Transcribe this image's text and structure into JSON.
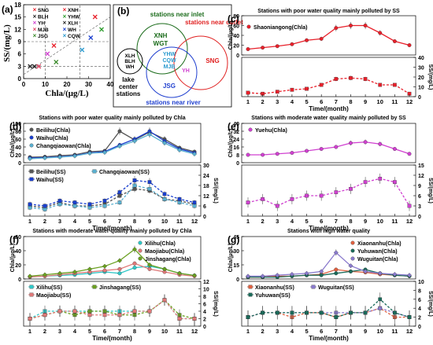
{
  "panel_letters": [
    "(a)",
    "(b)",
    "(c)",
    "(d)",
    "(e)",
    "(f)",
    "(g)"
  ],
  "panel_b": {
    "groups": [
      {
        "title": "stations near inlet",
        "color": "#1a6b1a",
        "members": [
          "XNH",
          "WGT"
        ]
      },
      {
        "title": "stations near outlet",
        "color": "#e02020",
        "members": [
          "SNG"
        ]
      },
      {
        "title": "stations near river",
        "color": "#1f3fcf",
        "members": [
          "JSG"
        ]
      }
    ],
    "overlap_members": [
      "YHW",
      "CQW",
      "MJB"
    ],
    "overlap_extra": "YH",
    "lake_center": {
      "members": [
        "XLH",
        "BLH",
        "WH"
      ],
      "label_lines": [
        "lake",
        "center",
        "stations"
      ]
    }
  },
  "chart_data": [
    {
      "panel": "(a)",
      "type": "scatter",
      "xlabel": "Chla/(μg/L)",
      "ylabel": "SS/(mg/L)",
      "xlim": [
        0,
        40
      ],
      "ylim": [
        0,
        18
      ],
      "xticks": [
        0,
        10,
        20,
        30,
        40
      ],
      "yticks": [
        0,
        3,
        6,
        9,
        12,
        15,
        18
      ],
      "series": [
        {
          "name": "SNG",
          "color": "#e8202a",
          "marker": "x",
          "x": 33,
          "y": 15
        },
        {
          "name": "XNH",
          "color": "#e8202a",
          "marker": "x",
          "x": 14,
          "y": 8
        },
        {
          "name": "BLH",
          "color": "#222222",
          "marker": "x",
          "x": 3,
          "y": 3
        },
        {
          "name": "YHW",
          "color": "#2a9a2a",
          "marker": "x",
          "x": 36,
          "y": 12
        },
        {
          "name": "YH",
          "color": "#d040d0",
          "marker": "x",
          "x": 11,
          "y": 6
        },
        {
          "name": "XLH",
          "color": "#222222",
          "marker": "x",
          "x": 5,
          "y": 3
        },
        {
          "name": "MJB",
          "color": "#e04060",
          "marker": "x",
          "x": 7,
          "y": 3
        },
        {
          "name": "WH",
          "color": "#1a3fcf",
          "marker": "x",
          "x": 31,
          "y": 10
        },
        {
          "name": "JSG",
          "color": "#3a8a2a",
          "marker": "x",
          "x": 15,
          "y": 4
        },
        {
          "name": "CQW",
          "color": "#2a9acf",
          "marker": "x",
          "x": 27,
          "y": 7
        }
      ]
    },
    {
      "panel": "(c)",
      "type": "line",
      "title": "Stations with poor water quality mainly polluted by SS",
      "xlabel": "Time/(month)",
      "ylabel_top": "Chla/(μg/L)",
      "ylabel_bottom": "SS/(mg/L)",
      "x": [
        1,
        2,
        3,
        4,
        5,
        6,
        7,
        8,
        9,
        10,
        11,
        12
      ],
      "top": {
        "ylim": [
          0,
          80
        ],
        "yticks": [
          0,
          20,
          40,
          60,
          80
        ],
        "series": [
          {
            "name": "Shaoniangong(Chla)",
            "color": "#e8202a",
            "values": [
              12,
              15,
              18,
              22,
              30,
              33,
              55,
              60,
              60,
              45,
              28,
              20
            ]
          }
        ]
      },
      "bottom": {
        "ylim": [
          0,
          40
        ],
        "yticks": [
          0,
          10,
          20,
          30,
          40
        ],
        "series": [
          {
            "name": "Shaoniangong(SS)",
            "color": "#e8202a",
            "values": [
              4,
              3,
              5,
              7,
              8,
              12,
              18,
              19,
              18,
              12,
              12,
              3
            ]
          }
        ]
      }
    },
    {
      "panel": "(d)",
      "type": "line",
      "title": "Stations with poor water quality mainly polluted by Chla",
      "xlabel": "Time/(month)",
      "ylabel_top": "Chla/(μg/L)",
      "ylabel_bottom": "SS/(mg/L)",
      "x": [
        1,
        2,
        3,
        4,
        5,
        6,
        7,
        8,
        9,
        10,
        11,
        12
      ],
      "top": {
        "ylim": [
          0,
          100
        ],
        "yticks": [
          0,
          20,
          40,
          60,
          80,
          100
        ],
        "series": [
          {
            "name": "Beilihu(Chla)",
            "color": "#555555",
            "values": [
              14,
              15,
              18,
              20,
              28,
              30,
              80,
              58,
              78,
              60,
              38,
              28
            ]
          },
          {
            "name": "Waihu(Chla)",
            "color": "#1a3fcf",
            "values": [
              12,
              13,
              15,
              18,
              25,
              28,
              45,
              60,
              80,
              55,
              35,
              25
            ]
          },
          {
            "name": "Changqiaowan(Chla)",
            "color": "#5ab0d0",
            "values": [
              10,
              12,
              14,
              17,
              24,
              26,
              42,
              55,
              72,
              50,
              32,
              22
            ]
          }
        ]
      },
      "bottom": {
        "ylim": [
          0,
          30
        ],
        "yticks": [
          0,
          6,
          12,
          18,
          24,
          30
        ],
        "series": [
          {
            "name": "Beilihu(SS)",
            "color": "#555555",
            "values": [
              6,
              5,
              8,
              6,
              6,
              7,
              12,
              16,
              15,
              10,
              9,
              7
            ]
          },
          {
            "name": "Changqiaowan(SS)",
            "color": "#5ab0d0",
            "values": [
              5,
              4,
              7,
              6,
              5,
              6,
              8,
              18,
              16,
              10,
              8,
              6
            ]
          },
          {
            "name": "Waihu(SS)",
            "color": "#1a3fcf",
            "values": [
              7,
              6,
              9,
              8,
              7,
              9,
              14,
              21,
              20,
              13,
              10,
              8
            ]
          }
        ]
      }
    },
    {
      "panel": "(e)",
      "type": "line",
      "title": "Stations with moderate water quality mainly polluted by SS",
      "xlabel": "Time/(month)",
      "ylabel_top": "Chla/(μg/L)",
      "ylabel_bottom": "SS/(mg/L)",
      "x": [
        1,
        2,
        3,
        4,
        5,
        6,
        7,
        8,
        9,
        10,
        11,
        12
      ],
      "top": {
        "ylim": [
          0,
          40
        ],
        "yticks": [
          0,
          8,
          16,
          24,
          32,
          40
        ],
        "series": [
          {
            "name": "Yuehu(Chla)",
            "color": "#d040d0",
            "values": [
              8,
              8,
              9,
              10,
              12,
              14,
              16,
              20,
              21,
              19,
              14,
              9
            ]
          }
        ]
      },
      "bottom": {
        "ylim": [
          0,
          15
        ],
        "yticks": [
          0,
          3,
          6,
          9,
          12,
          15
        ],
        "series": [
          {
            "name": "Yuehu(SS)",
            "color": "#d040d0",
            "values": [
              4,
              5,
              3,
              5,
              6,
              6,
              7,
              8,
              10,
              11,
              10,
              3
            ]
          }
        ]
      }
    },
    {
      "panel": "(f)",
      "type": "line",
      "title": "Stations with moderate water quality mainly polluted by Chla",
      "xlabel": "Time/(month)",
      "ylabel_top": "Chla/(μg/L)",
      "ylabel_bottom": "SS/(mg/L)",
      "x": [
        1,
        2,
        3,
        4,
        5,
        6,
        7,
        8,
        9,
        10,
        11,
        12
      ],
      "top": {
        "ylim": [
          0,
          60
        ],
        "yticks": [
          0,
          20,
          40,
          60
        ],
        "series": [
          {
            "name": "Xilihu(Chla)",
            "color": "#2ec8c8",
            "values": [
              3,
              4,
              5,
              6,
              8,
              10,
              8,
              16,
              18,
              14,
              8,
              5
            ]
          },
          {
            "name": "Maojiabu(Chla)",
            "color": "#e07878",
            "values": [
              3,
              4,
              6,
              8,
              10,
              12,
              14,
              22,
              14,
              10,
              6,
              4
            ]
          },
          {
            "name": "Jinshagang(Chla)",
            "color": "#6aa020",
            "values": [
              4,
              6,
              8,
              10,
              14,
              18,
              26,
              42,
              20,
              14,
              8,
              5
            ]
          }
        ]
      },
      "bottom": {
        "ylim": [
          0,
          12
        ],
        "yticks": [
          0,
          2,
          4,
          6,
          8,
          10,
          12
        ],
        "series": [
          {
            "name": "Xilihu(SS)",
            "color": "#2ec8c8",
            "values": [
              2,
              4,
              4,
              4,
              4,
              4,
              4,
              4,
              4,
              7,
              2,
              2
            ]
          },
          {
            "name": "Jinshagang(SS)",
            "color": "#6aa020",
            "values": [
              2,
              3,
              4,
              3,
              4,
              4,
              3,
              3,
              4,
              7,
              3,
              2
            ]
          },
          {
            "name": "Maojiabu(SS)",
            "color": "#e07878",
            "values": [
              2,
              3,
              4,
              4,
              3,
              3,
              3,
              4,
              4,
              7,
              2,
              2
            ]
          }
        ]
      }
    },
    {
      "panel": "(g)",
      "type": "line",
      "title": "Stations with high water quality",
      "xlabel": "Time/(month)",
      "ylabel_top": "Chla/(μg/L)",
      "ylabel_bottom": "SS/(mg/L)",
      "x": [
        1,
        2,
        3,
        4,
        5,
        6,
        7,
        8,
        9,
        10,
        11,
        12
      ],
      "top": {
        "ylim": [
          0,
          45
        ],
        "yticks": [
          0,
          15,
          30,
          45
        ],
        "series": [
          {
            "name": "Xiaonanhu(Chla)",
            "color": "#e06040",
            "values": [
              2,
              2,
              3,
              3,
              4,
              5,
              10,
              8,
              7,
              5,
              4,
              3
            ]
          },
          {
            "name": "Yuhuwan(Chla)",
            "color": "#1a6b5a",
            "values": [
              2,
              2,
              2,
              3,
              4,
              4,
              6,
              8,
              10,
              6,
              4,
              3
            ]
          },
          {
            "name": "Wuguitan(Chla)",
            "color": "#8a7acd",
            "values": [
              3,
              3,
              4,
              5,
              6,
              8,
              28,
              14,
              8,
              6,
              5,
              4
            ]
          }
        ]
      },
      "bottom": {
        "ylim": [
          0,
          10
        ],
        "yticks": [
          0,
          2,
          4,
          6,
          8,
          10
        ],
        "series": [
          {
            "name": "Xiaonanhu(SS)",
            "color": "#e06040",
            "values": [
              2,
              3,
              3,
              2,
              3,
              3,
              2,
              3,
              3,
              4,
              2,
              2
            ]
          },
          {
            "name": "Wuguitan(SS)",
            "color": "#8a7acd",
            "values": [
              2,
              3,
              3,
              3,
              3,
              3,
              3,
              3,
              3,
              4,
              3,
              2
            ]
          },
          {
            "name": "Yuhuwan(SS)",
            "color": "#1a6b5a",
            "values": [
              2,
              3,
              3,
              3,
              3,
              3,
              2,
              3,
              3,
              6,
              3,
              2
            ]
          }
        ]
      }
    }
  ]
}
